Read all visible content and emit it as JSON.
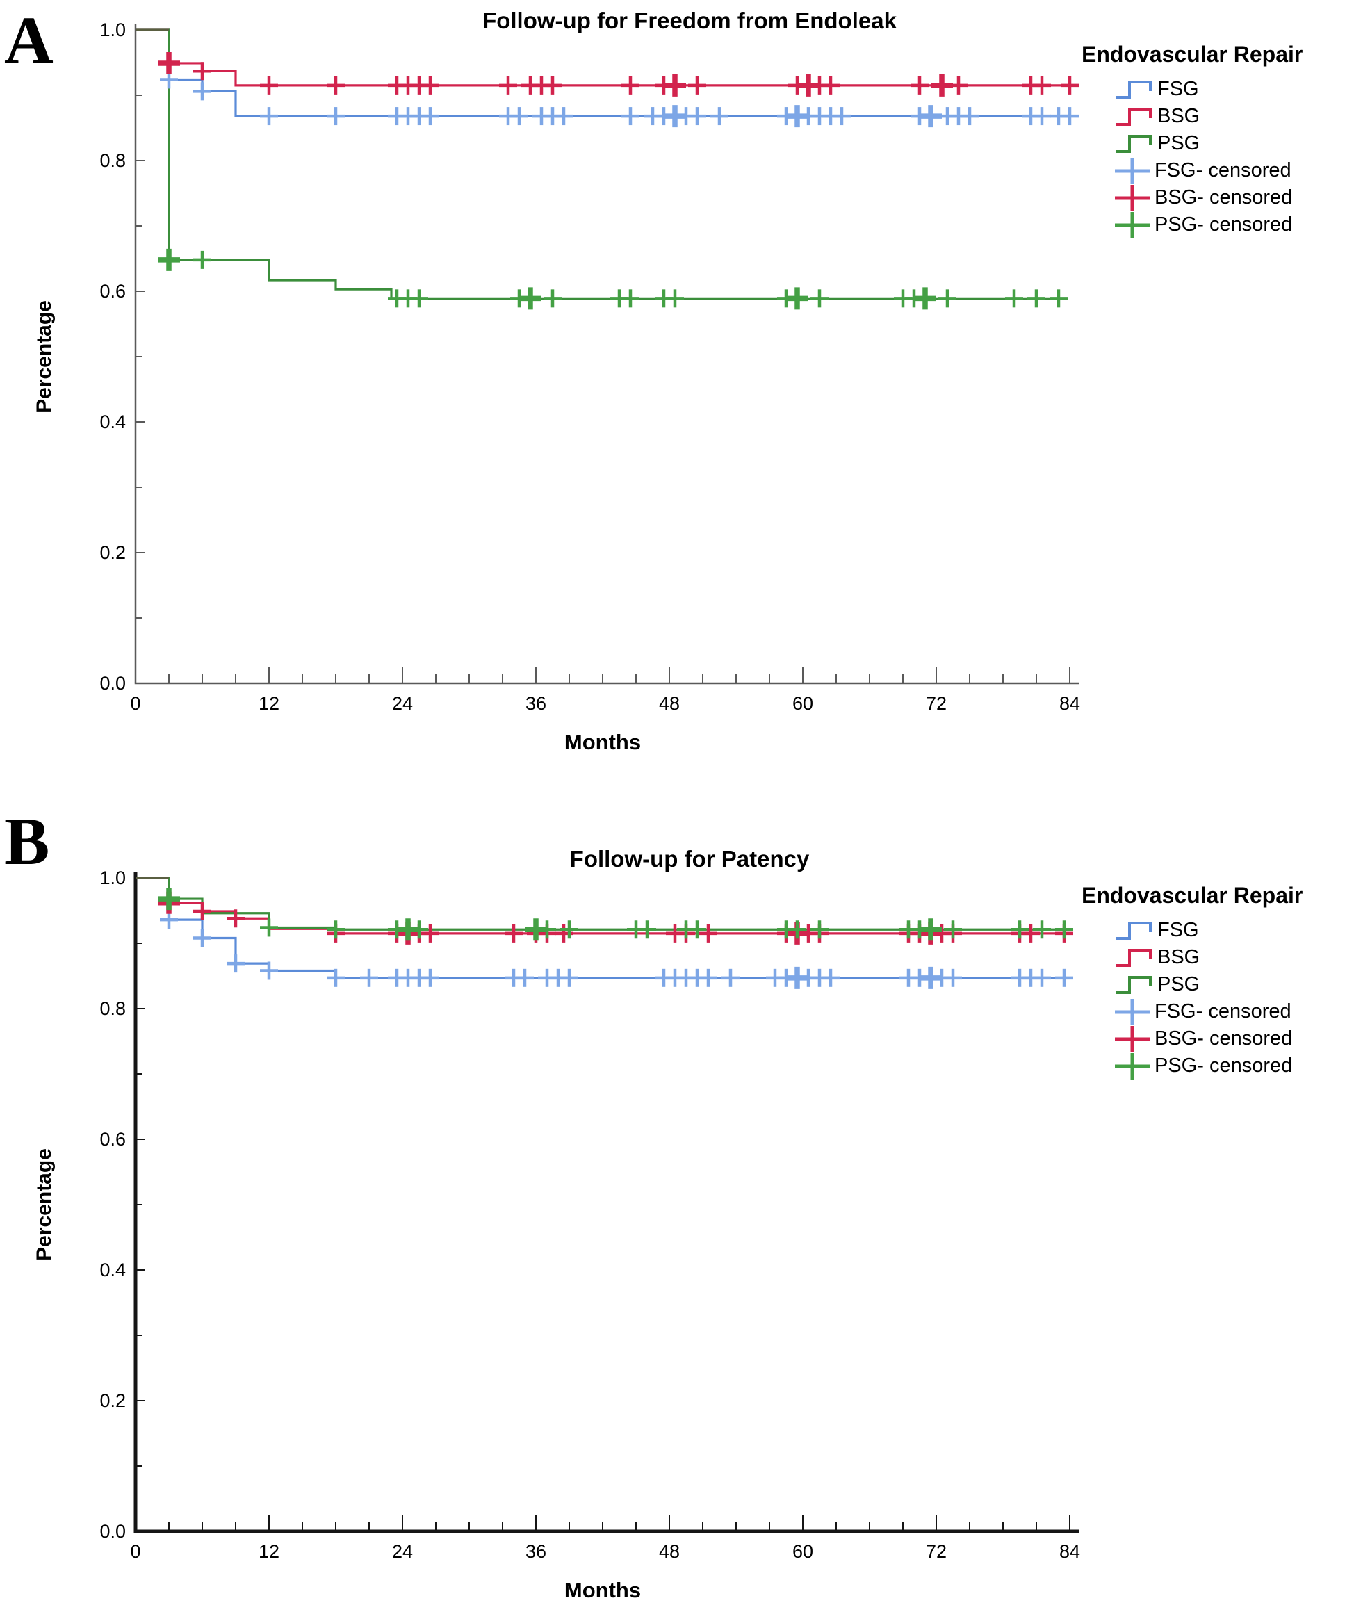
{
  "figure": {
    "background": "#ffffff"
  },
  "panels": [
    {
      "panel_label": "A",
      "title": "Follow-up for Freedom from Endoleak",
      "x_axis": {
        "label": "Months"
      },
      "y_axis": {
        "label": "Percentage"
      },
      "legend": {
        "title": "Endovascular Repair",
        "items": [
          {
            "label": "FSG",
            "type": "line",
            "color": "#5b8bd8"
          },
          {
            "label": "BSG",
            "type": "line",
            "color": "#d2234d"
          },
          {
            "label": "PSG",
            "type": "line",
            "color": "#3b8e3b"
          },
          {
            "label": "FSG- censored",
            "type": "censored",
            "color": "#7da6e6"
          },
          {
            "label": "BSG- censored",
            "type": "censored",
            "color": "#d2234d"
          },
          {
            "label": "PSG- censored",
            "type": "censored",
            "color": "#44a044"
          }
        ]
      }
    },
    {
      "panel_label": "B",
      "title": "Follow-up for Patency",
      "x_axis": {
        "label": "Months"
      },
      "y_axis": {
        "label": "Percentage"
      },
      "legend": {
        "title": "Endovascular Repair",
        "items": [
          {
            "label": "FSG",
            "type": "line",
            "color": "#5b8bd8"
          },
          {
            "label": "BSG",
            "type": "line",
            "color": "#d2234d"
          },
          {
            "label": "PSG",
            "type": "line",
            "color": "#3b8e3b"
          },
          {
            "label": "FSG- censored",
            "type": "censored",
            "color": "#7da6e6"
          },
          {
            "label": "BSG- censored",
            "type": "censored",
            "color": "#d2234d"
          },
          {
            "label": "PSG- censored",
            "type": "censored",
            "color": "#44a044"
          }
        ]
      }
    }
  ],
  "chart_data": [
    {
      "type": "line",
      "subtype": "kaplan-meier-step",
      "title": "Follow-up for Freedom from Endoleak",
      "xlabel": "Months",
      "ylabel": "Percentage",
      "xlim": [
        0,
        84
      ],
      "ylim": [
        0.0,
        1.0
      ],
      "x_major_ticks": [
        0,
        12,
        24,
        36,
        48,
        60,
        72,
        84
      ],
      "x_minor_step": 3,
      "y_tick_labels": [
        "1.0",
        "0.8",
        "0.6",
        "0.4",
        "0.2",
        "0.0"
      ],
      "y_tick_values": [
        1.0,
        0.8,
        0.6,
        0.4,
        0.2,
        0.0
      ],
      "y_minor_step": 0.1,
      "grid": false,
      "legend_position": "right",
      "axis_color": "#595959",
      "axis_width": 2.5,
      "series": [
        {
          "name": "FSG",
          "color": "#5b8bd8",
          "censor_color": "#7da6e6",
          "steps": [
            [
              0,
              1.0
            ],
            [
              3,
              0.924
            ],
            [
              6,
              0.906
            ],
            [
              9,
              0.868
            ]
          ],
          "end": 84,
          "censored": [
            3,
            6,
            12,
            18,
            23.5,
            24.5,
            25.5,
            26.5,
            33.5,
            34.5,
            36.5,
            37.5,
            38.5,
            44.5,
            46.5,
            47.5,
            48.5,
            49.5,
            50.5,
            52.5,
            58.5,
            59.5,
            60.5,
            61.5,
            62.5,
            63.5,
            70.5,
            71.5,
            73,
            74,
            75,
            80.5,
            81.5,
            83,
            84
          ],
          "bold_censored": [
            48.5,
            59.5,
            71.5
          ]
        },
        {
          "name": "BSG",
          "color": "#d2234d",
          "censor_color": "#d2234d",
          "steps": [
            [
              0,
              1.0
            ],
            [
              3,
              0.949
            ],
            [
              6,
              0.937
            ],
            [
              9,
              0.915
            ]
          ],
          "end": 84,
          "censored": [
            3,
            6,
            12,
            18,
            23.5,
            24.5,
            25.5,
            26.5,
            33.5,
            35.5,
            36.5,
            37.5,
            44.5,
            47.5,
            48.5,
            50.5,
            59.5,
            60.5,
            61.5,
            62.5,
            70.5,
            72.5,
            74,
            80.5,
            81.5,
            84
          ],
          "bold_censored": [
            3,
            48.5,
            60.5,
            72.5
          ]
        },
        {
          "name": "PSG",
          "color": "#3b8e3b",
          "censor_color": "#44a044",
          "steps": [
            [
              0,
              1.0
            ],
            [
              3,
              0.648
            ],
            [
              12,
              0.617
            ],
            [
              18,
              0.603
            ],
            [
              23,
              0.589
            ]
          ],
          "end": 83,
          "censored": [
            3,
            6,
            23.5,
            24.5,
            25.5,
            34.5,
            35.5,
            37.5,
            43.5,
            44.5,
            47.5,
            48.5,
            58.5,
            59.5,
            61.5,
            69,
            70,
            71,
            73,
            79,
            81,
            83
          ],
          "bold_censored": [
            3,
            35.5,
            59.5,
            71
          ]
        }
      ]
    },
    {
      "type": "line",
      "subtype": "kaplan-meier-step",
      "title": "Follow-up for Patency",
      "xlabel": "Months",
      "ylabel": "Percentage",
      "xlim": [
        0,
        84
      ],
      "ylim": [
        0.0,
        1.0
      ],
      "x_major_ticks": [
        0,
        12,
        24,
        36,
        48,
        60,
        72,
        84
      ],
      "x_minor_step": 3,
      "y_tick_labels": [
        "1.0",
        "0.8",
        "0.6",
        "0.4",
        "0.2",
        "0.0"
      ],
      "y_tick_values": [
        1.0,
        0.8,
        0.6,
        0.4,
        0.2,
        0.0
      ],
      "y_minor_step": 0.1,
      "grid": false,
      "legend_position": "right",
      "axis_color": "#151515",
      "axis_width": 5,
      "series": [
        {
          "name": "FSG",
          "color": "#5b8bd8",
          "censor_color": "#7da6e6",
          "steps": [
            [
              0,
              1.0
            ],
            [
              3,
              0.936
            ],
            [
              6,
              0.908
            ],
            [
              9,
              0.869
            ],
            [
              12,
              0.858
            ],
            [
              18,
              0.847
            ]
          ],
          "end": 84,
          "censored": [
            3,
            6,
            9,
            12,
            18,
            21,
            23.5,
            24.5,
            25.5,
            26.5,
            34,
            35,
            37,
            38,
            39,
            47.5,
            48.5,
            49.5,
            50.5,
            51.5,
            53.5,
            57.5,
            58.5,
            59.5,
            60.5,
            61.5,
            62.5,
            69.5,
            70.5,
            71.5,
            72.5,
            73.5,
            79.5,
            80.5,
            81.5,
            83.5
          ],
          "bold_censored": [
            59.5,
            71.5
          ]
        },
        {
          "name": "BSG",
          "color": "#d2234d",
          "censor_color": "#d2234d",
          "steps": [
            [
              0,
              1.0
            ],
            [
              3,
              0.962
            ],
            [
              6,
              0.949
            ],
            [
              9,
              0.938
            ],
            [
              12,
              0.922
            ],
            [
              18,
              0.915
            ]
          ],
          "end": 84,
          "censored": [
            3,
            6,
            9,
            18,
            23.5,
            24.5,
            25.5,
            26.5,
            34,
            36,
            37,
            38.5,
            48.5,
            49.5,
            51.5,
            58.5,
            59.5,
            60.5,
            61.5,
            69.5,
            70.5,
            71.5,
            72.5,
            73.5,
            79.5,
            80.5,
            83.5
          ],
          "bold_censored": [
            3,
            24.5,
            59.5,
            71.5
          ]
        },
        {
          "name": "PSG",
          "color": "#3b8e3b",
          "censor_color": "#44a044",
          "steps": [
            [
              0,
              1.0
            ],
            [
              3,
              0.968
            ],
            [
              6,
              0.946
            ],
            [
              12,
              0.924
            ],
            [
              18,
              0.921
            ]
          ],
          "end": 84,
          "censored": [
            3,
            12,
            18,
            23.5,
            24.5,
            25.5,
            36,
            37,
            39,
            45,
            46,
            49.5,
            50.5,
            58.5,
            59.5,
            61.5,
            69.5,
            70.5,
            71.5,
            73.5,
            79.5,
            81.5,
            83.5
          ],
          "bold_censored": [
            3,
            24.5,
            36,
            71.5
          ]
        }
      ]
    }
  ]
}
